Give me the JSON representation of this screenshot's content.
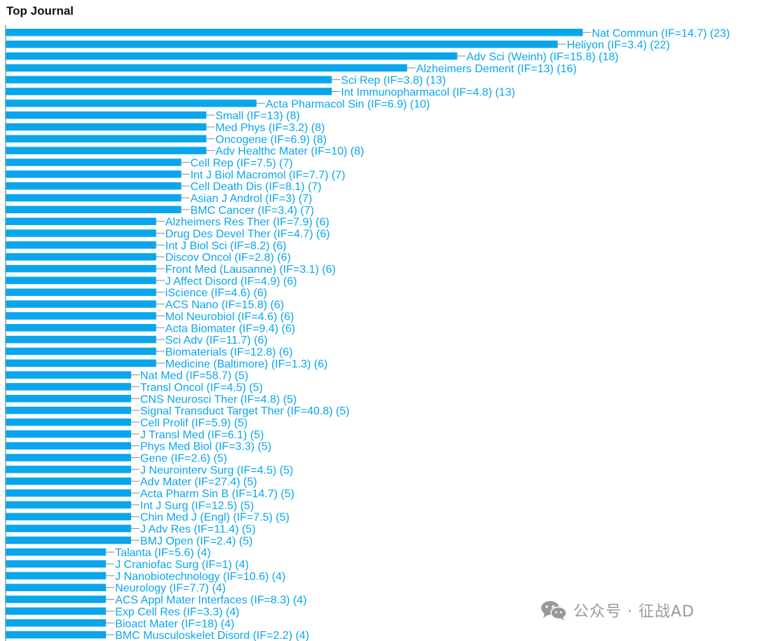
{
  "title": "Top Journal",
  "watermark": {
    "icon": "wechat-icon",
    "text": "公众号 · 征战AD"
  },
  "colors": {
    "bar": "#0aa6ec",
    "label": "#0aa6ec",
    "axis": "#666666"
  },
  "chart_data": {
    "type": "bar",
    "orientation": "horizontal",
    "title": "Top Journal",
    "xlabel": "",
    "ylabel": "",
    "grid": false,
    "categories": [
      "Nat Commun (IF=14.7) (23)",
      "Heliyon (IF=3.4) (22)",
      "Adv Sci (Weinh) (IF=15.8) (18)",
      "Alzheimers Dement (IF=13) (16)",
      "Sci Rep (IF=3.8) (13)",
      "Int Immunopharmacol (IF=4.8) (13)",
      "Acta Pharmacol Sin (IF=6.9) (10)",
      "Small (IF=13) (8)",
      "Med Phys (IF=3.2) (8)",
      "Oncogene (IF=6.9) (8)",
      "Adv Healthc Mater (IF=10) (8)",
      "Cell Rep (IF=7.5) (7)",
      "Int J Biol Macromol (IF=7.7) (7)",
      "Cell Death Dis (IF=8.1) (7)",
      "Asian J Androl (IF=3) (7)",
      "BMC Cancer (IF=3.4) (7)",
      "Alzheimers Res Ther (IF=7.9) (6)",
      "Drug Des Devel Ther (IF=4.7) (6)",
      "Int J Biol Sci (IF=8.2) (6)",
      "Discov Oncol (IF=2.8) (6)",
      "Front Med (Lausanne) (IF=3.1) (6)",
      "J Affect Disord (IF=4.9) (6)",
      "iScience (IF=4.6) (6)",
      "ACS Nano (IF=15.8) (6)",
      "Mol Neurobiol (IF=4.6) (6)",
      "Acta Biomater (IF=9.4) (6)",
      "Sci Adv (IF=11.7) (6)",
      "Biomaterials (IF=12.8) (6)",
      "Medicine (Baltimore) (IF=1.3) (6)",
      "Nat Med (IF=58.7) (5)",
      "Transl Oncol (IF=4.5) (5)",
      "CNS Neurosci Ther (IF=4.8) (5)",
      "Signal Transduct Target Ther (IF=40.8) (5)",
      "Cell Prolif (IF=5.9) (5)",
      "J Transl Med (IF=6.1) (5)",
      "Phys Med Biol (IF=3.3) (5)",
      "Gene (IF=2.6) (5)",
      "J Neurointerv Surg (IF=4.5) (5)",
      "Adv Mater (IF=27.4) (5)",
      "Acta Pharm Sin B (IF=14.7) (5)",
      "Int J Surg (IF=12.5) (5)",
      "Chin Med J (Engl) (IF=7.5) (5)",
      "J Adv Res (IF=11.4) (5)",
      "BMJ Open (IF=2.4) (5)",
      "Talanta (IF=5.6) (4)",
      "J Craniofac Surg (IF=1) (4)",
      "J Nanobiotechnology (IF=10.6) (4)",
      "Neurology (IF=7.7) (4)",
      "ACS Appl Mater Interfaces (IF=8.3) (4)",
      "Exp Cell Res (IF=3.3) (4)",
      "Bioact Mater (IF=18) (4)",
      "BMC Musculoskelet Disord (IF=2.2) (4)"
    ],
    "values": [
      23,
      22,
      18,
      16,
      13,
      13,
      10,
      8,
      8,
      8,
      8,
      7,
      7,
      7,
      7,
      7,
      6,
      6,
      6,
      6,
      6,
      6,
      6,
      6,
      6,
      6,
      6,
      6,
      6,
      5,
      5,
      5,
      5,
      5,
      5,
      5,
      5,
      5,
      5,
      5,
      5,
      5,
      5,
      5,
      4,
      4,
      4,
      4,
      4,
      4,
      4,
      4
    ],
    "xlim": [
      0,
      23
    ]
  }
}
